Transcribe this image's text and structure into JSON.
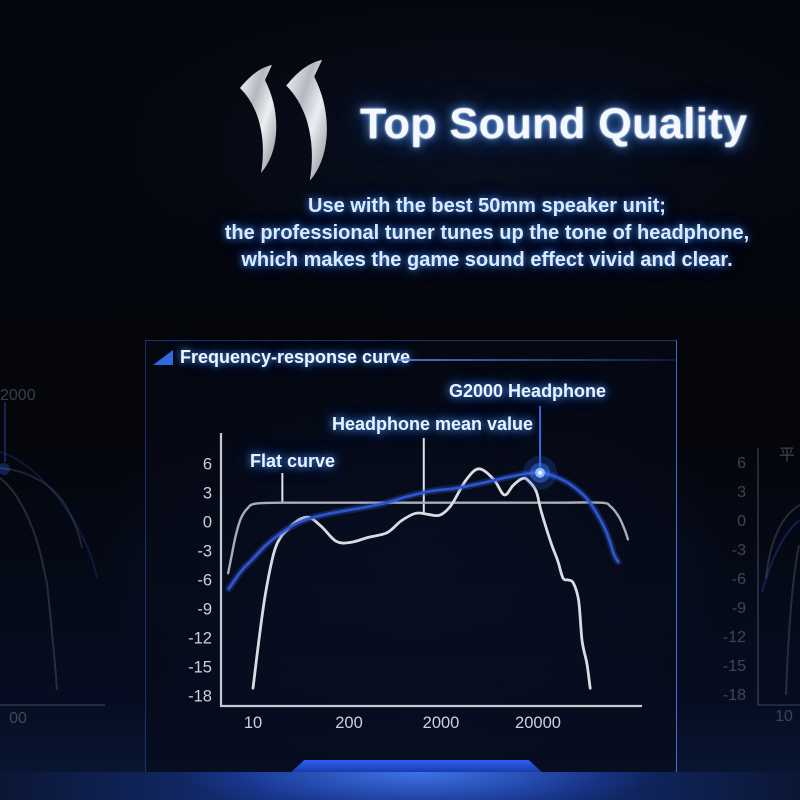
{
  "header": {
    "title": "Top Sound Quality",
    "description_lines": [
      "Use with the best 50mm speaker unit;",
      "the professional tuner tunes up the tone of headphone,",
      "which makes the game sound effect vivid and clear."
    ]
  },
  "logo": {
    "icon": "double-chevron-logo"
  },
  "panel": {
    "title": "Frequency-response curve"
  },
  "chart_data": {
    "type": "line",
    "title": "Frequency-response curve",
    "x_axis": {
      "scale": "log",
      "unit": "Hz",
      "tick_labels": [
        "10",
        "200",
        "2000",
        "20000"
      ],
      "tick_values": [
        10,
        200,
        2000,
        20000
      ]
    },
    "y_axis": {
      "unit": "dB",
      "tick_labels": [
        "6",
        "3",
        "0",
        "-3",
        "-6",
        "-9",
        "-12",
        "-15",
        "-18"
      ],
      "tick_values": [
        6,
        3,
        0,
        -3,
        -6,
        -9,
        -12,
        -15,
        -18
      ],
      "ylim": [
        -19.5,
        7.5
      ]
    },
    "grid": false,
    "legend_position": "annotated-labels-with-pointer-lines",
    "annotations": [
      {
        "label": "Flat curve",
        "pointer_freq": 25,
        "pointer_db": 2.0
      },
      {
        "label": "Headphone mean value",
        "pointer_freq": 1300,
        "pointer_db": 0.9
      },
      {
        "label": "G2000 Headphone",
        "pointer_freq": 21000,
        "pointer_db": 5.1,
        "marker": "blue-glow-dot"
      }
    ],
    "series": [
      {
        "name": "Flat curve",
        "color": "#a9aeb6",
        "points": [
          [
            4.6,
            -5.3
          ],
          [
            5.1,
            -3.6
          ],
          [
            5.8,
            -1.5
          ],
          [
            6.8,
            0.3
          ],
          [
            8.4,
            1.4
          ],
          [
            11,
            1.9
          ],
          [
            30,
            2
          ],
          [
            300,
            2
          ],
          [
            3000,
            2
          ],
          [
            30000,
            2
          ],
          [
            89000,
            2
          ],
          [
            112000,
            1.6
          ],
          [
            137000,
            0.5
          ],
          [
            158000,
            -0.9
          ],
          [
            169000,
            -1.8
          ]
        ]
      },
      {
        "name": "Headphone mean value",
        "color": "#d8dde3",
        "points": [
          [
            10,
            -17.2
          ],
          [
            12,
            -12.3
          ],
          [
            15,
            -7.1
          ],
          [
            20.5,
            -2.5
          ],
          [
            33,
            -0.4
          ],
          [
            54,
            0.5
          ],
          [
            83,
            -0.4
          ],
          [
            134,
            -2
          ],
          [
            210,
            -2.1
          ],
          [
            320,
            -1.6
          ],
          [
            520,
            -1.1
          ],
          [
            735,
            0.1
          ],
          [
            1060,
            0.9
          ],
          [
            1430,
            0.8
          ],
          [
            1930,
            0.7
          ],
          [
            2530,
            1.7
          ],
          [
            3600,
            4.3
          ],
          [
            4920,
            5.5
          ],
          [
            7000,
            4.4
          ],
          [
            8980,
            2.8
          ],
          [
            11100,
            3.8
          ],
          [
            13800,
            4.5
          ],
          [
            15800,
            4.3
          ],
          [
            19100,
            3.2
          ],
          [
            21600,
            1.1
          ],
          [
            26900,
            -2
          ],
          [
            31900,
            -4
          ],
          [
            36200,
            -5.8
          ],
          [
            41000,
            -6
          ],
          [
            46200,
            -6.3
          ],
          [
            52400,
            -8.1
          ],
          [
            57000,
            -12.3
          ],
          [
            64000,
            -14.7
          ],
          [
            69000,
            -17.2
          ]
        ]
      },
      {
        "name": "G2000 Headphone",
        "color": "#2e56cc",
        "points": [
          [
            4.7,
            -6.9
          ],
          [
            6.9,
            -5.1
          ],
          [
            10,
            -3.8
          ],
          [
            15,
            -2.4
          ],
          [
            22.5,
            -1.3
          ],
          [
            38,
            -0.2
          ],
          [
            61,
            0.4
          ],
          [
            114,
            0.9
          ],
          [
            250,
            1.4
          ],
          [
            470,
            1.9
          ],
          [
            830,
            2.6
          ],
          [
            1560,
            3.2
          ],
          [
            2860,
            3.5
          ],
          [
            5160,
            4
          ],
          [
            9440,
            4.6
          ],
          [
            14900,
            5
          ],
          [
            21600,
            5.1
          ],
          [
            30000,
            4.7
          ],
          [
            43000,
            3.9
          ],
          [
            64000,
            2.4
          ],
          [
            85000,
            0.5
          ],
          [
            103000,
            -1.2
          ],
          [
            122000,
            -3.4
          ],
          [
            134000,
            -4.1
          ]
        ]
      }
    ]
  },
  "ghost_left": {
    "top_label": "2000",
    "axis_label": "00"
  },
  "ghost_right": {
    "corner_label": "平",
    "axis_label": "10"
  },
  "colors": {
    "accent_blue": "#2e56cc",
    "glow_blue": "#4a9aff",
    "flat_gray": "#a9aeb6",
    "mean_white": "#d8dde3",
    "axis": "#c5cad2",
    "panel_border": "#2a4a9a",
    "tab_blue": "#2b5bf0"
  }
}
